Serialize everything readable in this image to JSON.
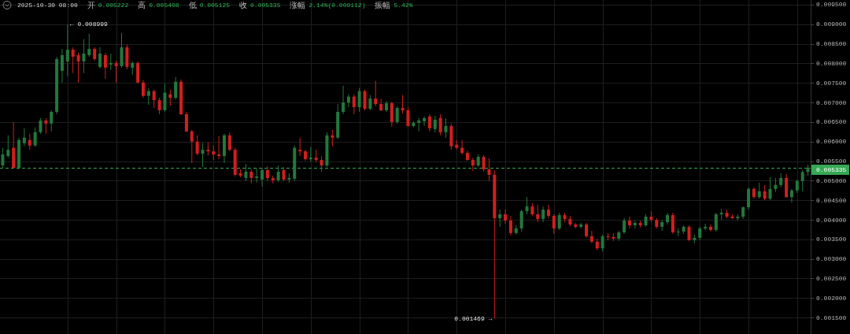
{
  "chart_data": {
    "type": "candlestick",
    "title": "2025-10-30 08:00",
    "annotations": [
      "开",
      "0.005222",
      "高",
      "0.005408",
      "低",
      "0.005125",
      "收",
      "0.005335",
      "涨幅",
      "2.14%(0.000112)",
      "振幅",
      "5.42%",
      "← 0.008999",
      "0.001469 →"
    ],
    "categories": [
      null,
      null,
      null,
      null,
      null,
      null,
      null,
      null,
      null,
      null,
      null,
      null,
      null,
      null,
      null,
      null,
      null,
      null,
      null,
      null,
      null,
      null,
      null,
      null,
      null,
      null,
      null,
      null,
      null,
      null,
      null,
      null,
      null,
      null,
      null,
      null,
      null,
      null,
      null,
      null,
      null,
      null,
      null,
      null,
      null,
      null,
      null,
      null,
      null,
      null,
      null,
      null,
      null,
      null,
      null,
      null,
      null,
      null,
      null,
      null,
      null,
      null,
      null,
      null,
      null,
      null,
      null,
      null,
      null,
      null,
      null,
      null,
      null,
      null,
      null,
      null,
      null,
      null,
      null,
      null,
      null,
      null,
      null,
      null,
      null,
      null,
      null,
      null,
      null,
      null,
      null,
      null,
      null,
      null,
      null,
      null,
      null,
      null,
      null,
      null,
      null,
      null,
      null,
      null,
      null,
      null,
      null,
      null,
      null,
      null,
      null,
      null,
      null,
      null,
      null,
      null,
      null,
      null,
      null,
      null,
      null,
      null,
      null,
      null,
      null,
      null,
      null,
      null,
      null,
      null,
      null,
      null,
      null,
      null,
      null,
      null,
      null,
      null,
      null,
      null,
      null,
      null,
      null,
      null,
      null,
      null,
      null,
      null,
      null,
      null
    ],
    "ohlc": [
      [
        0.00539,
        0.00584,
        0.00531,
        0.00567
      ],
      [
        0.00563,
        0.00616,
        0.00559,
        0.00579
      ],
      [
        0.00584,
        0.0065,
        0.00531,
        0.00533
      ],
      [
        0.00533,
        0.0061,
        0.00529,
        0.00604
      ],
      [
        0.00596,
        0.00634,
        0.00588,
        0.0061
      ],
      [
        0.00604,
        0.0062,
        0.00579,
        0.0059
      ],
      [
        0.0059,
        0.00636,
        0.00586,
        0.00624
      ],
      [
        0.00624,
        0.0066,
        0.0062,
        0.00654
      ],
      [
        0.00654,
        0.0066,
        0.0062,
        0.00646
      ],
      [
        0.00646,
        0.0068,
        0.00626,
        0.00676
      ],
      [
        0.00676,
        0.00817,
        0.0067,
        0.00811
      ],
      [
        0.00781,
        0.00837,
        0.00751,
        0.00821
      ],
      [
        0.00805,
        0.008999,
        0.00767,
        0.00835
      ],
      [
        0.00835,
        0.00841,
        0.00775,
        0.00817
      ],
      [
        0.00821,
        0.00827,
        0.00751,
        0.00805
      ],
      [
        0.00805,
        0.00862,
        0.00775,
        0.00825
      ],
      [
        0.00821,
        0.00876,
        0.00817,
        0.00837
      ],
      [
        0.00837,
        0.00841,
        0.00807,
        0.00811
      ],
      [
        0.00791,
        0.00841,
        0.00787,
        0.00825
      ],
      [
        0.00821,
        0.00827,
        0.00761,
        0.00789
      ],
      [
        0.00797,
        0.00825,
        0.00783,
        0.00801
      ],
      [
        0.00801,
        0.00807,
        0.00751,
        0.00793
      ],
      [
        0.00793,
        0.00878,
        0.00789,
        0.00841
      ],
      [
        0.00841,
        0.00848,
        0.00785,
        0.00791
      ],
      [
        0.00789,
        0.00805,
        0.00771,
        0.00801
      ],
      [
        0.00801,
        0.00805,
        0.00749,
        0.00751
      ],
      [
        0.00751,
        0.00757,
        0.00712,
        0.00717
      ],
      [
        0.00717,
        0.00737,
        0.00694,
        0.00729
      ],
      [
        0.00729,
        0.00733,
        0.00686,
        0.00706
      ],
      [
        0.00706,
        0.00712,
        0.0067,
        0.0068
      ],
      [
        0.0068,
        0.00749,
        0.00676,
        0.00725
      ],
      [
        0.00721,
        0.00733,
        0.00692,
        0.00712
      ],
      [
        0.00712,
        0.00765,
        0.00708,
        0.00753
      ],
      [
        0.00753,
        0.00759,
        0.00668,
        0.0067
      ],
      [
        0.0067,
        0.00676,
        0.00624,
        0.00626
      ],
      [
        0.00626,
        0.0063,
        0.00545,
        0.006
      ],
      [
        0.006,
        0.00616,
        0.00565,
        0.00569
      ],
      [
        0.00569,
        0.00596,
        0.00535,
        0.00579
      ],
      [
        0.00579,
        0.00598,
        0.00565,
        0.00575
      ],
      [
        0.00575,
        0.0059,
        0.00553,
        0.00567
      ],
      [
        0.00567,
        0.00614,
        0.00555,
        0.00563
      ],
      [
        0.00563,
        0.0062,
        0.00545,
        0.00616
      ],
      [
        0.00616,
        0.00624,
        0.00575,
        0.00579
      ],
      [
        0.00579,
        0.00584,
        0.00511,
        0.00515
      ],
      [
        0.00519,
        0.00529,
        0.00509,
        0.00513
      ],
      [
        0.00507,
        0.00543,
        0.00499,
        0.00523
      ],
      [
        0.00523,
        0.00529,
        0.00493,
        0.00507
      ],
      [
        0.00507,
        0.00531,
        0.00495,
        0.00511
      ],
      [
        0.00503,
        0.00531,
        0.00485,
        0.00527
      ],
      [
        0.00527,
        0.00537,
        0.00499,
        0.00507
      ],
      [
        0.00507,
        0.00513,
        0.00493,
        0.00501
      ],
      [
        0.00501,
        0.00539,
        0.00497,
        0.00523
      ],
      [
        0.00527,
        0.00535,
        0.00499,
        0.00503
      ],
      [
        0.00503,
        0.00519,
        0.00495,
        0.00507
      ],
      [
        0.00505,
        0.0059,
        0.00499,
        0.00584
      ],
      [
        0.00579,
        0.0061,
        0.00563,
        0.00575
      ],
      [
        0.00575,
        0.00579,
        0.00551,
        0.00555
      ],
      [
        0.00555,
        0.00586,
        0.00549,
        0.00559
      ],
      [
        0.00559,
        0.00579,
        0.00547,
        0.00553
      ],
      [
        0.00553,
        0.00563,
        0.00523,
        0.00539
      ],
      [
        0.00539,
        0.00624,
        0.00535,
        0.00616
      ],
      [
        0.00616,
        0.0063,
        0.00588,
        0.0061
      ],
      [
        0.0061,
        0.00696,
        0.00606,
        0.00676
      ],
      [
        0.00676,
        0.00743,
        0.0067,
        0.007
      ],
      [
        0.007,
        0.00721,
        0.00688,
        0.00715
      ],
      [
        0.00715,
        0.00721,
        0.0067,
        0.00688
      ],
      [
        0.00688,
        0.00737,
        0.00676,
        0.00729
      ],
      [
        0.00729,
        0.00733,
        0.0068,
        0.00684
      ],
      [
        0.00684,
        0.00719,
        0.0068,
        0.0071
      ],
      [
        0.0071,
        0.00755,
        0.0069,
        0.00696
      ],
      [
        0.00696,
        0.0071,
        0.00678,
        0.0068
      ],
      [
        0.0068,
        0.00704,
        0.00676,
        0.00698
      ],
      [
        0.00698,
        0.00702,
        0.00638,
        0.0065
      ],
      [
        0.0065,
        0.0069,
        0.00646,
        0.00686
      ],
      [
        0.00686,
        0.00719,
        0.00672,
        0.0068
      ],
      [
        0.0068,
        0.00688,
        0.00638,
        0.0064
      ],
      [
        0.0064,
        0.00652,
        0.00636,
        0.00648
      ],
      [
        0.00648,
        0.0066,
        0.00626,
        0.00654
      ],
      [
        0.00652,
        0.00664,
        0.0064,
        0.0066
      ],
      [
        0.00664,
        0.0067,
        0.00626,
        0.00634
      ],
      [
        0.00632,
        0.00666,
        0.00624,
        0.00656
      ],
      [
        0.0066,
        0.0067,
        0.00616,
        0.00624
      ],
      [
        0.00624,
        0.0066,
        0.0061,
        0.0064
      ],
      [
        0.0064,
        0.00646,
        0.00579,
        0.00588
      ],
      [
        0.00592,
        0.00604,
        0.00579,
        0.00584
      ],
      [
        0.00584,
        0.00604,
        0.00567,
        0.00571
      ],
      [
        0.00571,
        0.00577,
        0.00551,
        0.00553
      ],
      [
        0.00553,
        0.00559,
        0.00525,
        0.00539
      ],
      [
        0.00539,
        0.00567,
        0.00535,
        0.00561
      ],
      [
        0.00561,
        0.00565,
        0.00523,
        0.00529
      ],
      [
        0.00529,
        0.00557,
        0.00499,
        0.00515
      ],
      [
        0.00515,
        0.00527,
        0.001469,
        0.00404
      ],
      [
        0.00404,
        0.00426,
        0.00382,
        0.00414
      ],
      [
        0.00414,
        0.00426,
        0.0039,
        0.00398
      ],
      [
        0.00398,
        0.0041,
        0.0036,
        0.00366
      ],
      [
        0.00366,
        0.00386,
        0.00362,
        0.00378
      ],
      [
        0.00378,
        0.00426,
        0.0037,
        0.00422
      ],
      [
        0.00422,
        0.00458,
        0.00414,
        0.00434
      ],
      [
        0.00434,
        0.00442,
        0.0041,
        0.00414
      ],
      [
        0.00414,
        0.00438,
        0.00394,
        0.00402
      ],
      [
        0.00402,
        0.00434,
        0.00394,
        0.00426
      ],
      [
        0.00426,
        0.00438,
        0.00404,
        0.0041
      ],
      [
        0.0041,
        0.00414,
        0.00364,
        0.00378
      ],
      [
        0.00378,
        0.00418,
        0.00374,
        0.00412
      ],
      [
        0.00412,
        0.00418,
        0.00394,
        0.00402
      ],
      [
        0.00402,
        0.0041,
        0.00384,
        0.00388
      ],
      [
        0.00388,
        0.00392,
        0.00378,
        0.00382
      ],
      [
        0.00382,
        0.00392,
        0.00378,
        0.00388
      ],
      [
        0.00388,
        0.00392,
        0.00354,
        0.00358
      ],
      [
        0.00358,
        0.00372,
        0.0034,
        0.00344
      ],
      [
        0.00344,
        0.00352,
        0.00323,
        0.00327
      ],
      [
        0.00327,
        0.00362,
        0.00319,
        0.00358
      ],
      [
        0.00358,
        0.00366,
        0.00348,
        0.00356
      ],
      [
        0.00356,
        0.00366,
        0.00346,
        0.00352
      ],
      [
        0.00352,
        0.00372,
        0.00346,
        0.00368
      ],
      [
        0.00368,
        0.00404,
        0.00364,
        0.00398
      ],
      [
        0.00398,
        0.00408,
        0.00378,
        0.00386
      ],
      [
        0.00386,
        0.00398,
        0.00378,
        0.00392
      ],
      [
        0.00392,
        0.00398,
        0.0038,
        0.00386
      ],
      [
        0.00386,
        0.00414,
        0.00382,
        0.00408
      ],
      [
        0.00408,
        0.00422,
        0.00394,
        0.004
      ],
      [
        0.004,
        0.00404,
        0.00378,
        0.00382
      ],
      [
        0.00382,
        0.004,
        0.00372,
        0.00394
      ],
      [
        0.00394,
        0.00418,
        0.00388,
        0.00412
      ],
      [
        0.00412,
        0.00418,
        0.00364,
        0.00368
      ],
      [
        0.00368,
        0.00378,
        0.00358,
        0.0037
      ],
      [
        0.0037,
        0.00386,
        0.00364,
        0.00382
      ],
      [
        0.00382,
        0.00386,
        0.00346,
        0.00348
      ],
      [
        0.00348,
        0.00362,
        0.0034,
        0.00354
      ],
      [
        0.00354,
        0.00382,
        0.00348,
        0.00378
      ],
      [
        0.00378,
        0.0039,
        0.00374,
        0.00382
      ],
      [
        0.00382,
        0.00388,
        0.0037,
        0.00374
      ],
      [
        0.00374,
        0.00418,
        0.0037,
        0.00414
      ],
      [
        0.00414,
        0.00428,
        0.004,
        0.00418
      ],
      [
        0.00418,
        0.00426,
        0.00404,
        0.00408
      ],
      [
        0.00408,
        0.00414,
        0.00402,
        0.00404
      ],
      [
        0.00404,
        0.00414,
        0.00398,
        0.00408
      ],
      [
        0.00408,
        0.00434,
        0.00402,
        0.00432
      ],
      [
        0.00432,
        0.00483,
        0.00426,
        0.00479
      ],
      [
        0.00479,
        0.00483,
        0.00454,
        0.00458
      ],
      [
        0.00458,
        0.00495,
        0.00454,
        0.00473
      ],
      [
        0.00473,
        0.00489,
        0.0045,
        0.00454
      ],
      [
        0.00454,
        0.00509,
        0.0045,
        0.00479
      ],
      [
        0.00479,
        0.00507,
        0.00471,
        0.00489
      ],
      [
        0.00489,
        0.00519,
        0.00483,
        0.00507
      ],
      [
        0.00507,
        0.00517,
        0.00456,
        0.00458
      ],
      [
        0.00458,
        0.00479,
        0.00444,
        0.00475
      ],
      [
        0.00475,
        0.00503,
        0.00469,
        0.00499
      ],
      [
        0.00499,
        0.00527,
        0.00473,
        0.00522
      ],
      [
        0.005222,
        0.005408,
        0.005125,
        0.005335
      ]
    ],
    "colors": [
      "#22783c",
      "#22783c",
      "#d11f1f",
      "#22783c",
      "#22783c",
      "#d11f1f",
      "#22783c",
      "#22783c",
      "#d11f1f",
      "#22783c",
      "#22783c",
      "#22783c",
      "#22783c",
      "#d11f1f",
      "#d11f1f",
      "#22783c",
      "#22783c",
      "#d11f1f",
      "#22783c",
      "#d11f1f",
      "#22783c",
      "#d11f1f",
      "#22783c",
      "#d11f1f",
      "#22783c",
      "#d11f1f",
      "#d11f1f",
      "#22783c",
      "#d11f1f",
      "#d11f1f",
      "#22783c",
      "#d11f1f",
      "#22783c",
      "#d11f1f",
      "#d11f1f",
      "#d11f1f",
      "#d11f1f",
      "#22783c",
      "#d11f1f",
      "#d11f1f",
      "#d11f1f",
      "#22783c",
      "#d11f1f",
      "#d11f1f",
      "#d11f1f",
      "#22783c",
      "#d11f1f",
      "#22783c",
      "#22783c",
      "#d11f1f",
      "#d11f1f",
      "#22783c",
      "#d11f1f",
      "#22783c",
      "#22783c",
      "#d11f1f",
      "#d11f1f",
      "#22783c",
      "#d11f1f",
      "#d11f1f",
      "#22783c",
      "#d11f1f",
      "#22783c",
      "#22783c",
      "#22783c",
      "#d11f1f",
      "#22783c",
      "#d11f1f",
      "#22783c",
      "#d11f1f",
      "#d11f1f",
      "#22783c",
      "#d11f1f",
      "#22783c",
      "#d11f1f",
      "#d11f1f",
      "#22783c",
      "#22783c",
      "#22783c",
      "#d11f1f",
      "#22783c",
      "#d11f1f",
      "#22783c",
      "#d11f1f",
      "#d11f1f",
      "#d11f1f",
      "#d11f1f",
      "#d11f1f",
      "#22783c",
      "#d11f1f",
      "#d11f1f",
      "#d11f1f",
      "#22783c",
      "#d11f1f",
      "#d11f1f",
      "#22783c",
      "#22783c",
      "#22783c",
      "#d11f1f",
      "#d11f1f",
      "#22783c",
      "#d11f1f",
      "#d11f1f",
      "#22783c",
      "#d11f1f",
      "#d11f1f",
      "#d11f1f",
      "#22783c",
      "#d11f1f",
      "#d11f1f",
      "#d11f1f",
      "#22783c",
      "#d11f1f",
      "#d11f1f",
      "#22783c",
      "#22783c",
      "#d11f1f",
      "#22783c",
      "#d11f1f",
      "#22783c",
      "#d11f1f",
      "#d11f1f",
      "#22783c",
      "#22783c",
      "#d11f1f",
      "#22783c",
      "#22783c",
      "#d11f1f",
      "#22783c",
      "#22783c",
      "#22783c",
      "#d11f1f",
      "#22783c",
      "#22783c",
      "#d11f1f",
      "#d11f1f",
      "#22783c",
      "#22783c",
      "#22783c",
      "#d11f1f",
      "#22783c",
      "#d11f1f",
      "#22783c",
      "#22783c",
      "#22783c",
      "#d11f1f",
      "#22783c",
      "#22783c",
      "#22783c",
      "#22783c"
    ],
    "ylim": [
      0.00108,
      0.00962
    ],
    "yticks": [
      {
        "value": 0.0015,
        "label": "0.001500"
      },
      {
        "value": 0.002,
        "label": "0.002000"
      },
      {
        "value": 0.0025,
        "label": "0.002500"
      },
      {
        "value": 0.003,
        "label": "0.003000"
      },
      {
        "value": 0.0035,
        "label": "0.003500"
      },
      {
        "value": 0.004,
        "label": "0.004000"
      },
      {
        "value": 0.0045,
        "label": "0.004500"
      },
      {
        "value": 0.005,
        "label": "0.005000"
      },
      {
        "value": 0.0055,
        "label": "0.005500"
      },
      {
        "value": 0.006,
        "label": "0.006000"
      },
      {
        "value": 0.0065,
        "label": "0.006500"
      },
      {
        "value": 0.007,
        "label": "0.007000"
      },
      {
        "value": 0.0075,
        "label": "0.007500"
      },
      {
        "value": 0.008,
        "label": "0.008000"
      },
      {
        "value": 0.0085,
        "label": "0.008500"
      },
      {
        "value": 0.009,
        "label": "0.009000"
      },
      {
        "value": 0.0095,
        "label": "0.009500"
      }
    ],
    "grid": true,
    "tick_labels": "y",
    "ref_lines": [
      {
        "axis": "y",
        "value": 0.005335,
        "label": "0.005335",
        "color": "#35a853",
        "line_style": "dashed"
      }
    ]
  }
}
